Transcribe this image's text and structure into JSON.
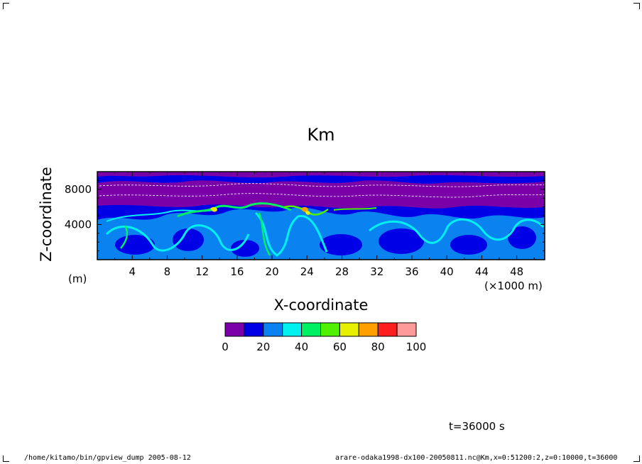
{
  "chart_data": {
    "type": "heatmap",
    "title": "Km",
    "xlabel": "X-coordinate",
    "ylabel": "Z-coordinate",
    "x_unit": "(×1000 m)",
    "y_unit": "(m)",
    "xlim": [
      0,
      51.2
    ],
    "ylim": [
      0,
      10000
    ],
    "x_ticks": [
      "4",
      "8",
      "12",
      "16",
      "20",
      "24",
      "28",
      "32",
      "36",
      "40",
      "44",
      "48"
    ],
    "y_ticks": [
      "4000",
      "8000"
    ],
    "colorbar": {
      "levels": [
        0,
        10,
        20,
        30,
        40,
        50,
        60,
        70,
        80,
        90,
        100
      ],
      "tick_labels": [
        "0",
        "20",
        "40",
        "60",
        "80",
        "100"
      ],
      "colors": [
        "#7a00a8",
        "#0000e6",
        "#0a82f0",
        "#00f0f0",
        "#00f064",
        "#50f000",
        "#e6f000",
        "#ffa000",
        "#ff1e1e",
        "#ff9a9a"
      ]
    }
  },
  "annotations": {
    "time": "t=36000 s"
  },
  "footer": {
    "left": "/home/kitamo/bin/gpview_dump  2005-08-12",
    "right": "arare-odaka1998-dx100-20050811.nc@Km,x=0:51200:2,z=0:10000,t=36000"
  }
}
